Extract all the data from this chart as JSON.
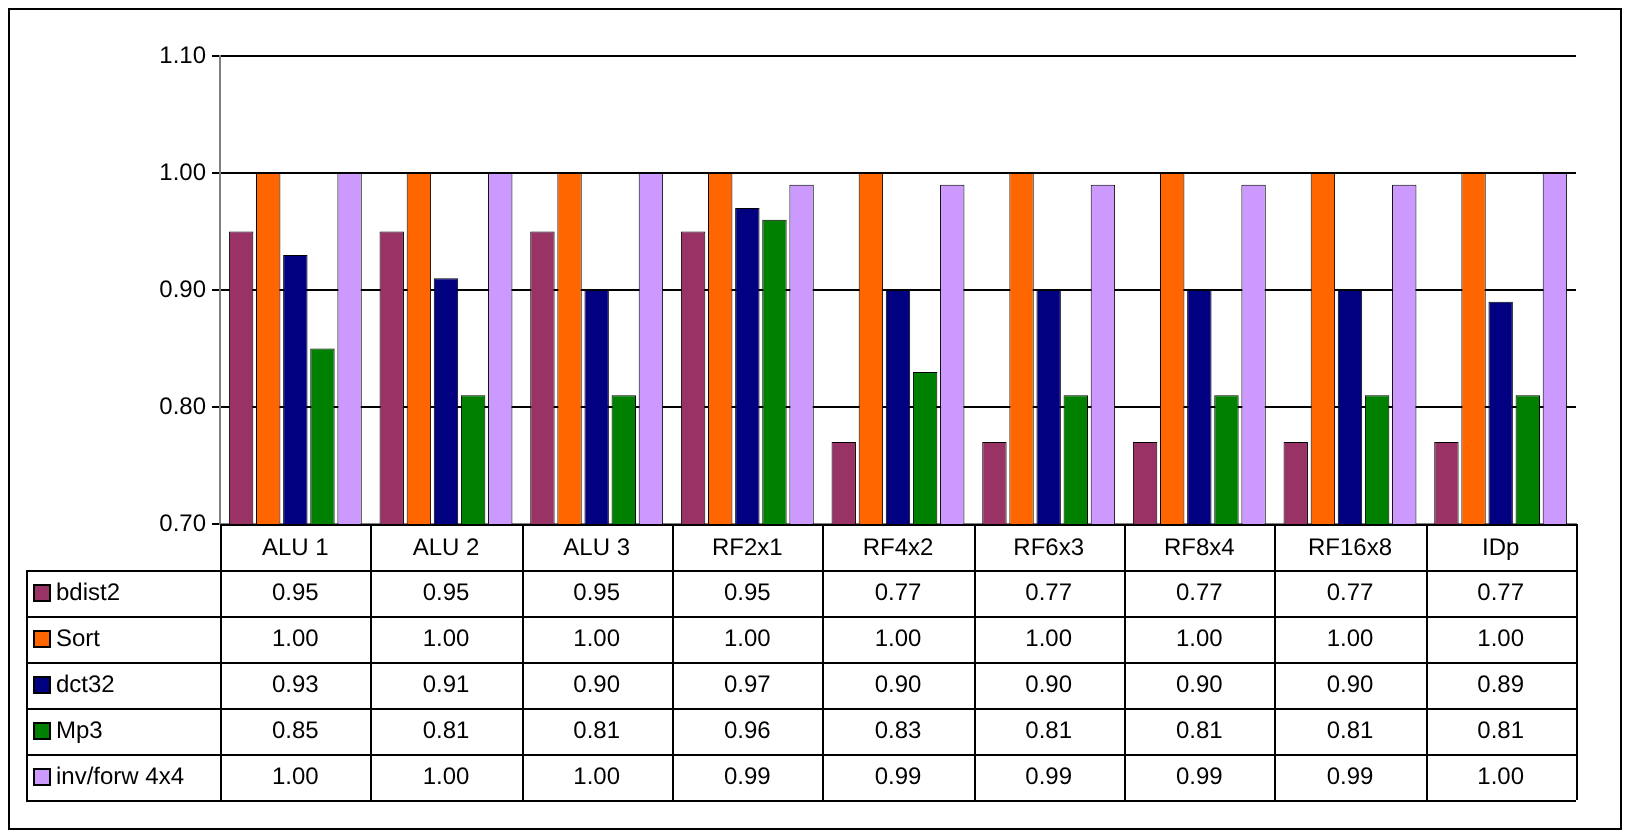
{
  "chart_data": {
    "type": "bar",
    "categories": [
      "ALU 1",
      "ALU 2",
      "ALU 3",
      "RF2x1",
      "RF4x2",
      "RF6x3",
      "RF8x4",
      "RF16x8",
      "IDp"
    ],
    "series": [
      {
        "name": "bdist2",
        "color": "#993366",
        "values": [
          0.95,
          0.95,
          0.95,
          0.95,
          0.77,
          0.77,
          0.77,
          0.77,
          0.77
        ],
        "value_labels": [
          "0.95",
          "0.95",
          "0.95",
          "0.95",
          "0.77",
          "0.77",
          "0.77",
          "0.77",
          "0.77"
        ]
      },
      {
        "name": "Sort",
        "color": "#ff6600",
        "values": [
          1.0,
          1.0,
          1.0,
          1.0,
          1.0,
          1.0,
          1.0,
          1.0,
          1.0
        ],
        "value_labels": [
          "1.00",
          "1.00",
          "1.00",
          "1.00",
          "1.00",
          "1.00",
          "1.00",
          "1.00",
          "1.00"
        ]
      },
      {
        "name": "dct32",
        "color": "#000080",
        "values": [
          0.93,
          0.91,
          0.9,
          0.97,
          0.9,
          0.9,
          0.9,
          0.9,
          0.89
        ],
        "value_labels": [
          "0.93",
          "0.91",
          "0.90",
          "0.97",
          "0.90",
          "0.90",
          "0.90",
          "0.90",
          "0.89"
        ]
      },
      {
        "name": "Mp3",
        "color": "#008000",
        "values": [
          0.85,
          0.81,
          0.81,
          0.96,
          0.83,
          0.81,
          0.81,
          0.81,
          0.81
        ],
        "value_labels": [
          "0.85",
          "0.81",
          "0.81",
          "0.96",
          "0.83",
          "0.81",
          "0.81",
          "0.81",
          "0.81"
        ]
      },
      {
        "name": "inv/forw 4x4",
        "color": "#cc99ff",
        "values": [
          1.0,
          1.0,
          1.0,
          0.99,
          0.99,
          0.99,
          0.99,
          0.99,
          1.0
        ],
        "value_labels": [
          "1.00",
          "1.00",
          "1.00",
          "0.99",
          "0.99",
          "0.99",
          "0.99",
          "0.99",
          "1.00"
        ]
      }
    ],
    "ylim": [
      0.7,
      1.1
    ],
    "yticks": [
      {
        "value": 0.7,
        "label": "0.70"
      },
      {
        "value": 0.8,
        "label": "0.80"
      },
      {
        "value": 0.9,
        "label": "0.90"
      },
      {
        "value": 1.0,
        "label": "1.00"
      },
      {
        "value": 1.1,
        "label": "1.10"
      }
    ],
    "grid": "y",
    "legend": "bottom"
  }
}
